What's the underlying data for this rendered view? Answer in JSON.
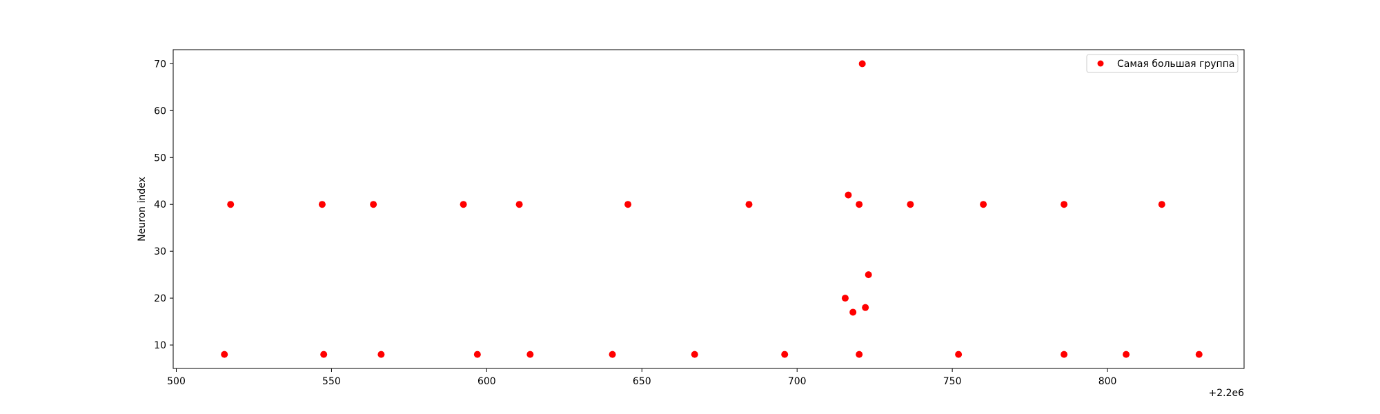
{
  "chart_data": {
    "type": "scatter",
    "title": "",
    "xlabel": "",
    "ylabel": "Neuron index",
    "x_offset_label": "+2.2e6",
    "xlim": [
      499,
      844
    ],
    "ylim": [
      5,
      73
    ],
    "xticks": [
      500,
      550,
      600,
      650,
      700,
      750,
      800
    ],
    "yticks": [
      10,
      20,
      30,
      40,
      50,
      60,
      70
    ],
    "grid": false,
    "legend_position": "top-right",
    "series": [
      {
        "name": "Самая большая группа",
        "color": "#ff0000",
        "points": [
          [
            515.5,
            8
          ],
          [
            517.5,
            40
          ],
          [
            547.0,
            40
          ],
          [
            547.5,
            8
          ],
          [
            563.5,
            40
          ],
          [
            566.0,
            8
          ],
          [
            592.5,
            40
          ],
          [
            597.0,
            8
          ],
          [
            610.5,
            40
          ],
          [
            614.0,
            8
          ],
          [
            640.5,
            8
          ],
          [
            645.5,
            40
          ],
          [
            667.0,
            8
          ],
          [
            684.5,
            40
          ],
          [
            696.0,
            8
          ],
          [
            715.5,
            20
          ],
          [
            716.5,
            42
          ],
          [
            718.0,
            17
          ],
          [
            720.0,
            40
          ],
          [
            720.0,
            8
          ],
          [
            721.0,
            70
          ],
          [
            722.0,
            18
          ],
          [
            723.0,
            25
          ],
          [
            736.5,
            40
          ],
          [
            752.0,
            8
          ],
          [
            760.0,
            40
          ],
          [
            786.0,
            40
          ],
          [
            786.0,
            8
          ],
          [
            806.0,
            8
          ],
          [
            817.5,
            40
          ],
          [
            829.5,
            8
          ]
        ]
      }
    ]
  }
}
